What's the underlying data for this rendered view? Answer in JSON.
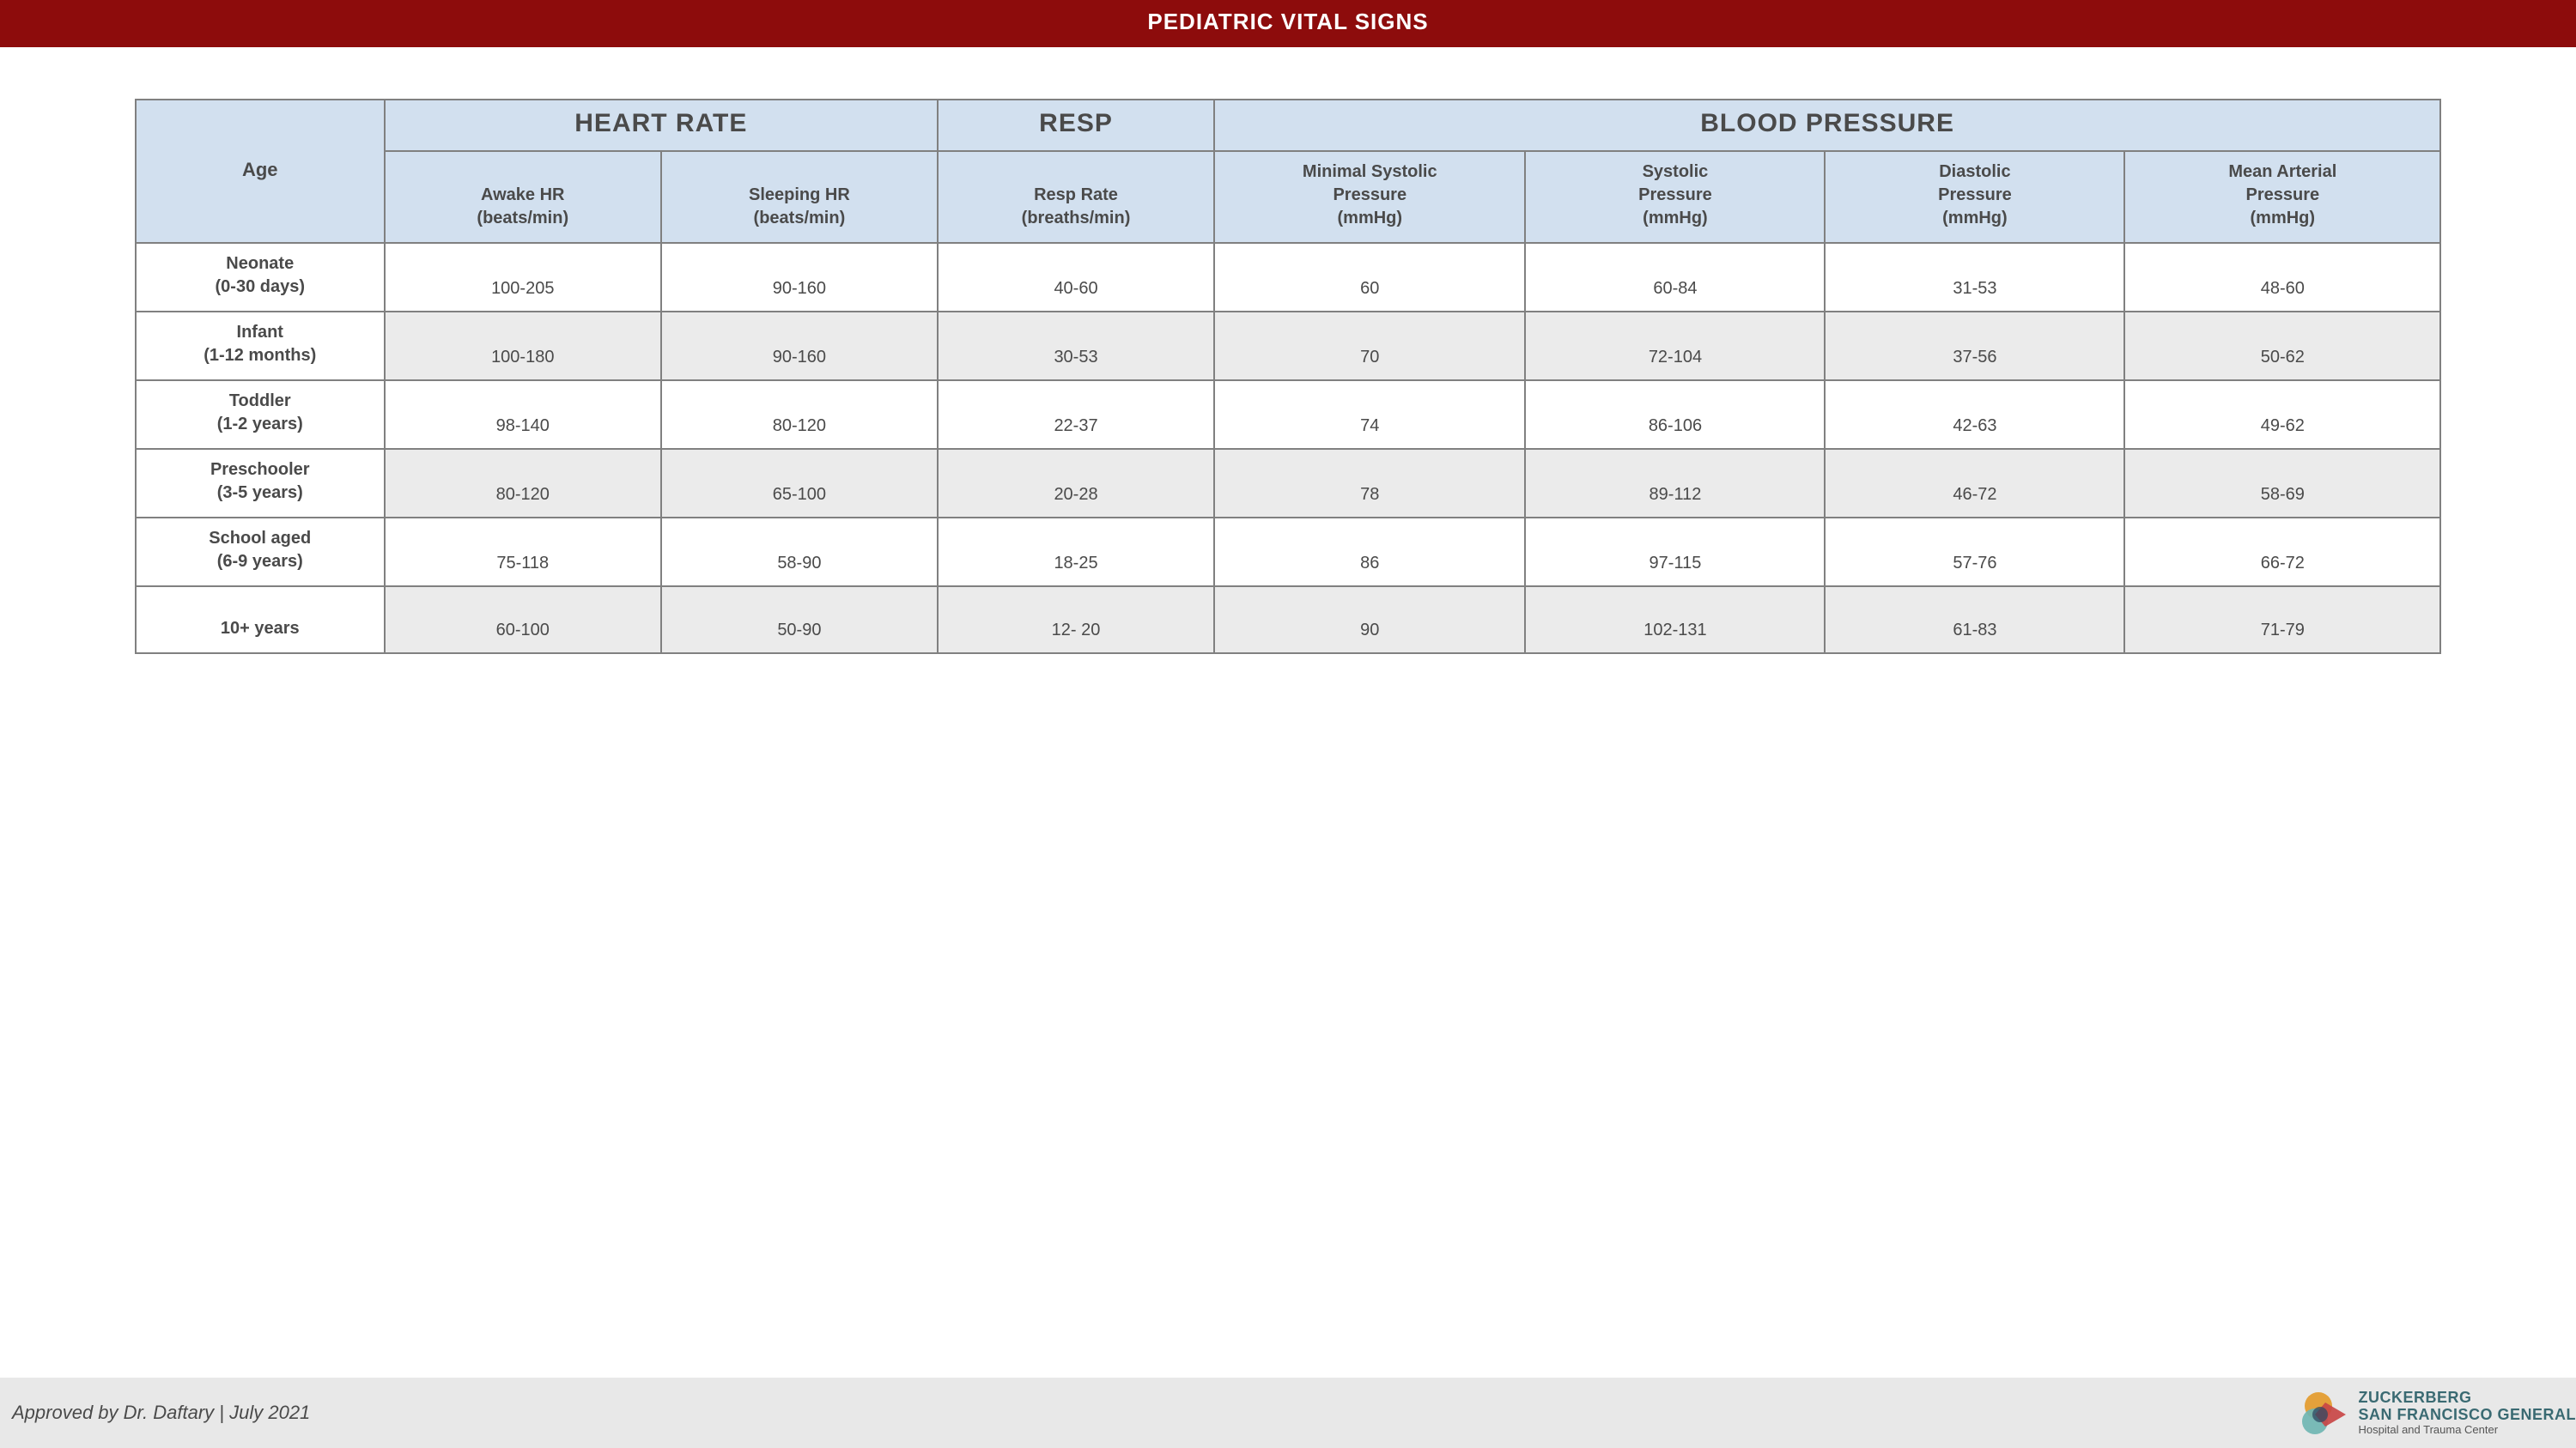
{
  "colors": {
    "title_bar_bg": "#8d0c0c",
    "title_bar_text": "#ffffff",
    "header_bg": "#d2e0ef",
    "row_alt_bg": "#ebebeb",
    "row_bg": "#ffffff",
    "cell_text": "#4a4a4a",
    "border": "#808080",
    "footer_bg": "#e8e8e8",
    "logo_text": "#3a6a72",
    "logo_orange": "#e39a2b",
    "logo_red": "#c84545",
    "logo_teal": "#6fb5b2",
    "logo_dark": "#2d4a63"
  },
  "title": "PEDIATRIC VITAL SIGNS",
  "title_fontsize": 26,
  "table": {
    "age_header": "Age",
    "groups": [
      {
        "label": "HEART RATE",
        "span": 2
      },
      {
        "label": "RESP",
        "span": 1
      },
      {
        "label": "BLOOD PRESSURE",
        "span": 4
      }
    ],
    "subheaders": [
      "Awake HR\n(beats/min)",
      "Sleeping HR\n(beats/min)",
      "Resp Rate\n(breaths/min)",
      "Minimal Systolic\nPressure\n(mmHg)",
      "Systolic\nPressure\n(mmHg)",
      "Diastolic\nPressure\n(mmHg)",
      "Mean Arterial\nPressure\n(mmHg)"
    ],
    "rows": [
      {
        "label": "Neonate\n(0-30 days)",
        "values": [
          "100-205",
          "90-160",
          "40-60",
          "60",
          "60-84",
          "31-53",
          "48-60"
        ]
      },
      {
        "label": "Infant\n(1-12 months)",
        "values": [
          "100-180",
          "90-160",
          "30-53",
          "70",
          "72-104",
          "37-56",
          "50-62"
        ]
      },
      {
        "label": "Toddler\n(1-2 years)",
        "values": [
          "98-140",
          "80-120",
          "22-37",
          "74",
          "86-106",
          "42-63",
          "49-62"
        ]
      },
      {
        "label": "Preschooler\n(3-5 years)",
        "values": [
          "80-120",
          "65-100",
          "20-28",
          "78",
          "89-112",
          "46-72",
          "58-69"
        ]
      },
      {
        "label": "School aged\n(6-9 years)",
        "values": [
          "75-118",
          "58-90",
          "18-25",
          "86",
          "97-115",
          "57-76",
          "66-72"
        ]
      },
      {
        "label": "\n10+ years",
        "values": [
          "60-100",
          "50-90",
          "12- 20",
          "90",
          "102-131",
          "61-83",
          "71-79"
        ]
      }
    ],
    "col_widths_pct": [
      10.8,
      12.0,
      12.0,
      12.0,
      13.5,
      13.0,
      13.0,
      13.7
    ]
  },
  "footer": {
    "approved": "Approved by Dr. Daftary  |  July 2021",
    "logo": {
      "line1": "ZUCKERBERG",
      "line2": "SAN FRANCISCO GENERAL",
      "line3": "Hospital and Trauma Center"
    }
  }
}
